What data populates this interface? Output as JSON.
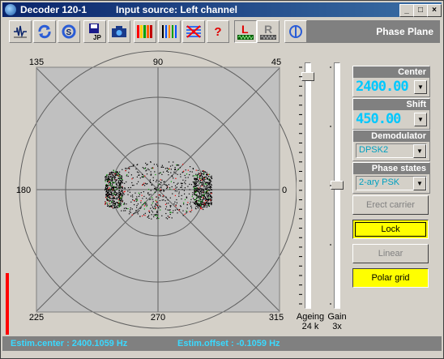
{
  "window": {
    "title": "Decoder 120-1",
    "source": "Input source: Left channel",
    "buttons": [
      "_",
      "□",
      "×"
    ]
  },
  "toolbar": {
    "panel_title": "Phase Plane",
    "buttons": [
      {
        "name": "spectrum-icon"
      },
      {
        "name": "refresh-icon"
      },
      {
        "name": "sync-icon"
      },
      {
        "name": "save-icon"
      },
      {
        "name": "camera-icon"
      },
      {
        "name": "color-bars-icon"
      },
      {
        "name": "bars-icon"
      },
      {
        "name": "grid-icon"
      },
      {
        "name": "help-icon",
        "label": "?"
      },
      {
        "name": "left-channel-icon",
        "label": "L"
      },
      {
        "name": "right-channel-icon",
        "label": "R"
      },
      {
        "name": "phase-icon"
      }
    ]
  },
  "plot": {
    "angle_labels": {
      "a135": "135",
      "a90": "90",
      "a45": "45",
      "a180": "180",
      "a0": "0",
      "a225": "225",
      "a270": "270",
      "a315": "315"
    },
    "colors": {
      "background": "#c0c0c0",
      "grid": "#606060",
      "dots": "#000000",
      "accent_red": "#ff0000",
      "accent_green": "#00a000"
    }
  },
  "sliders": {
    "ageing": {
      "label": "Ageing",
      "value": "24 k"
    },
    "gain": {
      "label": "Gain",
      "value": "3x"
    }
  },
  "controls": {
    "center": {
      "title": "Center",
      "value": "2400.00"
    },
    "shift": {
      "title": "Shift",
      "value": "450.00"
    },
    "demodulator": {
      "title": "Demodulator",
      "value": "DPSK2"
    },
    "phase_states": {
      "title": "Phase states",
      "value": "2-ary PSK"
    },
    "buttons": {
      "erect_carrier": "Erect carrier",
      "lock": "Lock",
      "linear": "Linear",
      "polar_grid": "Polar grid"
    }
  },
  "status": {
    "center": "Estim.center : 2400.1059 Hz",
    "offset": "Estim.offset : -0.1059 Hz"
  }
}
